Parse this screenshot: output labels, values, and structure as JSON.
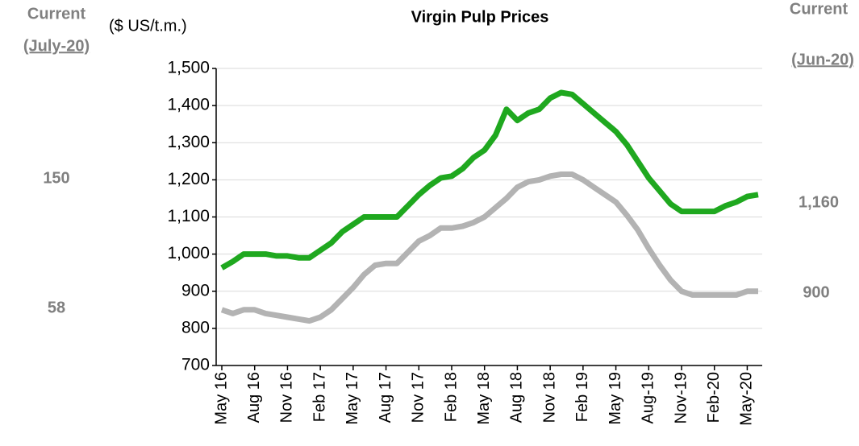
{
  "chart_data": {
    "type": "line",
    "title": "Virgin Pulp Prices",
    "unit_label": "($ US/t.m.)",
    "left_panel": {
      "heading": "Current",
      "period": "(July-20)",
      "values": [
        "150",
        "58"
      ]
    },
    "right_panel": {
      "heading": "Current",
      "period": "(Jun-20)",
      "values": [
        "1,160",
        "900"
      ]
    },
    "categories": [
      "May 16",
      null,
      null,
      "Aug 16",
      null,
      null,
      "Nov 16",
      null,
      null,
      "Feb 17",
      null,
      null,
      "May 17",
      null,
      null,
      "Aug 17",
      null,
      null,
      "Nov 17",
      null,
      null,
      "Feb 18",
      null,
      null,
      "May 18",
      null,
      null,
      "Aug 18",
      null,
      null,
      "Nov 18",
      null,
      null,
      "Feb 19",
      null,
      null,
      "May 19",
      null,
      null,
      "Aug-19",
      null,
      null,
      "Nov-19",
      null,
      null,
      "Feb-20",
      null,
      null,
      "May-20",
      null
    ],
    "series": [
      {
        "color": "#1fa81f",
        "values": [
          963,
          980,
          1000,
          1000,
          1000,
          995,
          995,
          990,
          990,
          1010,
          1030,
          1060,
          1080,
          1100,
          1100,
          1100,
          1100,
          1130,
          1160,
          1185,
          1205,
          1210,
          1230,
          1260,
          1280,
          1320,
          1390,
          1360,
          1380,
          1390,
          1420,
          1435,
          1430,
          1405,
          1380,
          1355,
          1330,
          1295,
          1250,
          1205,
          1170,
          1135,
          1115,
          1115,
          1115,
          1115,
          1130,
          1140,
          1155,
          1160
        ]
      },
      {
        "color": "#b3b3b3",
        "values": [
          850,
          840,
          850,
          850,
          840,
          835,
          830,
          825,
          820,
          830,
          850,
          880,
          910,
          945,
          970,
          975,
          975,
          1005,
          1035,
          1050,
          1070,
          1070,
          1075,
          1085,
          1100,
          1125,
          1150,
          1180,
          1195,
          1200,
          1210,
          1215,
          1215,
          1200,
          1180,
          1160,
          1140,
          1105,
          1065,
          1015,
          970,
          930,
          900,
          890,
          890,
          890,
          890,
          890,
          900,
          900
        ]
      }
    ],
    "ylim": [
      700,
      1500
    ],
    "yticks": [
      700,
      800,
      900,
      {
        "value": 1000,
        "label": "1,000"
      },
      {
        "value": 1100,
        "label": "1,100"
      },
      {
        "value": 1200,
        "label": "1,200"
      },
      {
        "value": 1300,
        "label": "1,300"
      },
      {
        "value": 1400,
        "label": "1,400"
      },
      {
        "value": 1500,
        "label": "1,500"
      }
    ],
    "grid": true
  }
}
